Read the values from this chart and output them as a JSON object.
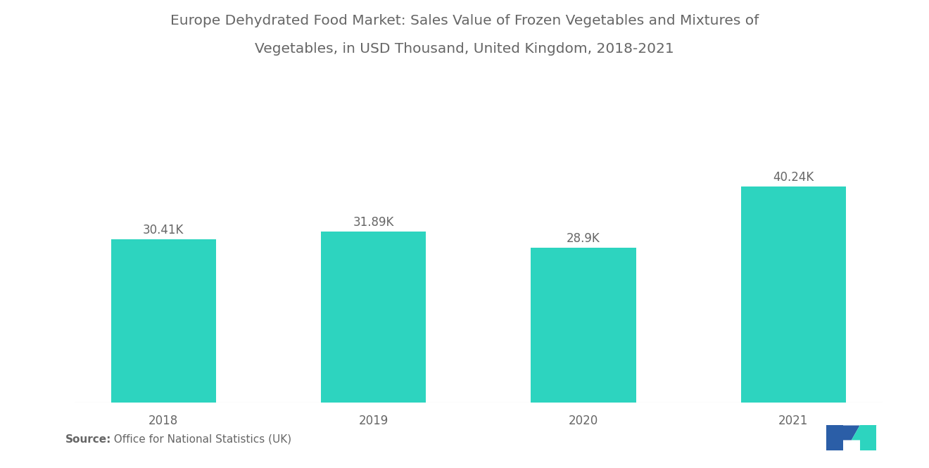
{
  "title_line1": "Europe Dehydrated Food Market: Sales Value of Frozen Vegetables and Mixtures of",
  "title_line2": "Vegetables, in USD Thousand, United Kingdom, 2018-2021",
  "categories": [
    "2018",
    "2019",
    "2020",
    "2021"
  ],
  "values": [
    30.41,
    31.89,
    28.9,
    40.24
  ],
  "labels": [
    "30.41K",
    "31.89K",
    "28.9K",
    "40.24K"
  ],
  "bar_color": "#2DD4BF",
  "background_color": "#ffffff",
  "source_bold": "Source:",
  "source_rest": "  Office for National Statistics (UK)",
  "title_fontsize": 14.5,
  "label_fontsize": 12,
  "tick_fontsize": 12,
  "source_fontsize": 11,
  "ylim_max": 48,
  "bar_width": 0.5,
  "text_color": "#666666",
  "logo_blue": "#2B5EA7",
  "logo_teal": "#2DD4BF"
}
